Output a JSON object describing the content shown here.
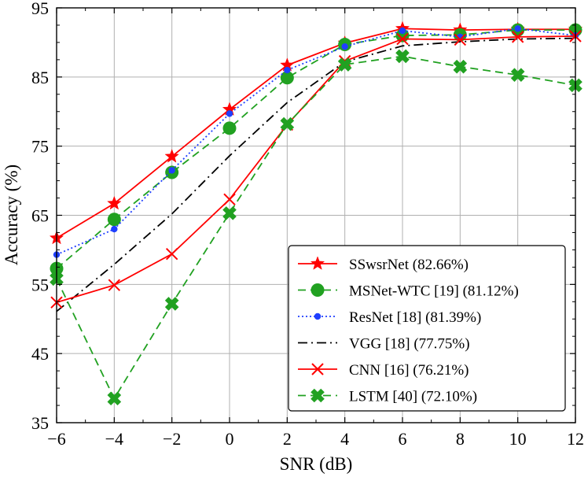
{
  "chart_data": {
    "type": "line",
    "title": "",
    "xlabel": "SNR (dB)",
    "ylabel": "Accuracy (%)",
    "xlim": [
      -6,
      12
    ],
    "ylim": [
      35,
      95
    ],
    "x": [
      -6,
      -4,
      -2,
      0,
      2,
      4,
      6,
      8,
      10,
      12
    ],
    "x_tick_labels": [
      "−6",
      "−4",
      "−2",
      "0",
      "2",
      "4",
      "6",
      "8",
      "10",
      "12"
    ],
    "y_ticks": [
      35,
      45,
      55,
      65,
      75,
      85,
      95
    ],
    "y_tick_labels": [
      "35",
      "45",
      "55",
      "65",
      "75",
      "85",
      "95"
    ],
    "grid": true,
    "legend_position": "bottom-right",
    "series": [
      {
        "name": "SSwsrNet",
        "label": "SSwsrNet (82.66%)",
        "color": "#ff0000",
        "line": "solid",
        "marker": "star",
        "values": [
          61.7,
          66.7,
          73.5,
          80.3,
          86.7,
          89.9,
          92.0,
          91.8,
          91.9,
          91.9
        ]
      },
      {
        "name": "MSNet-WTC [19]",
        "label": "MSNet-WTC [19] (81.12%)",
        "color": "#21a121",
        "line": "dashed",
        "marker": "circle",
        "values": [
          57.3,
          64.4,
          71.2,
          77.6,
          84.9,
          89.7,
          91.0,
          91.1,
          91.8,
          91.8
        ]
      },
      {
        "name": "ResNet [18]",
        "label": "ResNet [18] (81.39%)",
        "color": "#1f3fff",
        "line": "dotted",
        "marker": "dot",
        "values": [
          59.3,
          63.0,
          71.5,
          79.7,
          86.0,
          89.4,
          91.7,
          90.8,
          92.0,
          91.0
        ]
      },
      {
        "name": "VGG [18]",
        "label": "VGG [18] (77.75%)",
        "color": "#000000",
        "line": "dashdot",
        "marker": "none",
        "values": [
          51.1,
          57.9,
          65.2,
          73.6,
          81.3,
          87.2,
          89.5,
          90.1,
          90.5,
          90.6
        ]
      },
      {
        "name": "CNN [16]",
        "label": "CNN [16] (76.21%)",
        "color": "#ff0000",
        "line": "solid",
        "marker": "x",
        "values": [
          52.4,
          54.9,
          59.4,
          67.3,
          78.1,
          87.3,
          90.5,
          90.4,
          90.8,
          90.9
        ]
      },
      {
        "name": "LSTM [40]",
        "label": "LSTM [40] (72.10%)",
        "color": "#21a121",
        "line": "dashed",
        "marker": "thickx",
        "values": [
          55.8,
          38.5,
          52.2,
          65.3,
          78.2,
          86.8,
          88.0,
          86.5,
          85.3,
          83.8
        ]
      }
    ]
  }
}
